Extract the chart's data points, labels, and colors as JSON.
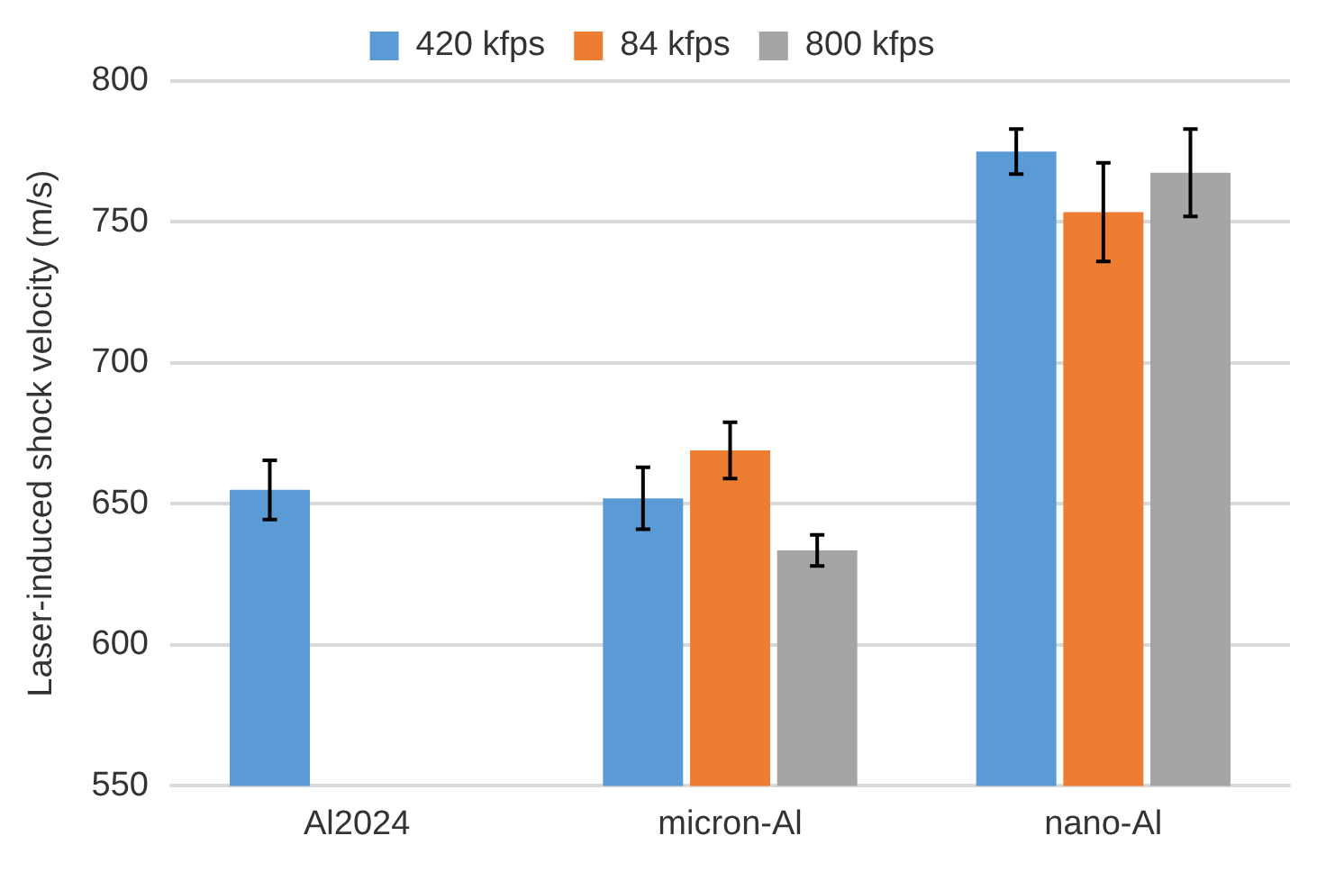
{
  "chart_data": {
    "type": "bar",
    "ylabel": "Laser-induced shock velocity (m/s)",
    "categories": [
      "Al2024",
      "micron-Al",
      "nano-Al"
    ],
    "series": [
      {
        "name": "420 kfps",
        "color": "#5b9bd5",
        "values": [
          655,
          652,
          775
        ],
        "errors": [
          10.5,
          11,
          8
        ]
      },
      {
        "name": "84 kfps",
        "color": "#ed7d31",
        "values": [
          null,
          669,
          753.5
        ],
        "errors": [
          null,
          10,
          17.5
        ]
      },
      {
        "name": "800 kfps",
        "color": "#a5a5a5",
        "values": [
          null,
          633.5,
          767.5
        ],
        "errors": [
          null,
          5.5,
          15.5
        ]
      }
    ],
    "ylim": [
      550,
      800
    ],
    "yticks": [
      550,
      600,
      650,
      700,
      750,
      800
    ],
    "grid": "y",
    "legend": "top"
  }
}
